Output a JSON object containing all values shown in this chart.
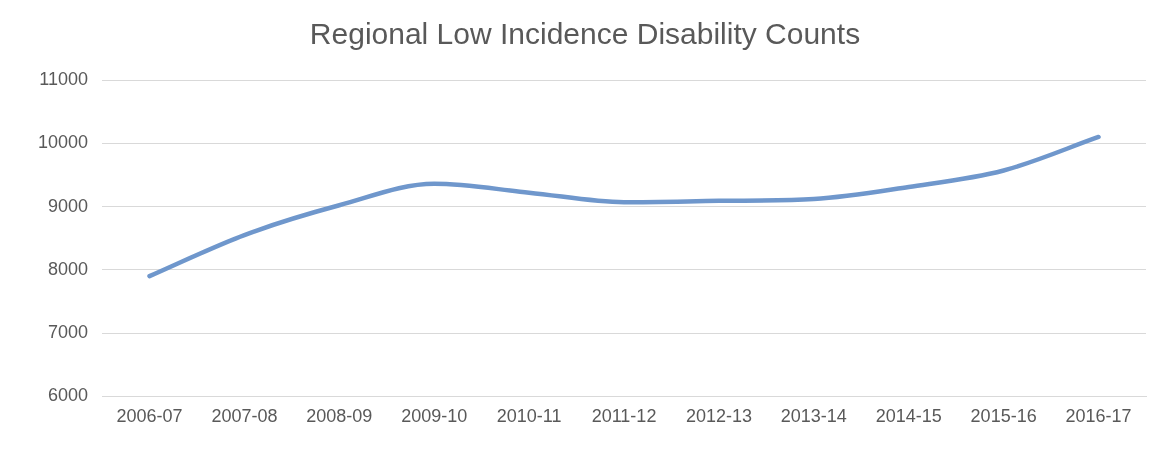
{
  "chart_data": {
    "type": "line",
    "title": "Regional Low Incidence Disability Counts",
    "categories": [
      "2006-07",
      "2007-08",
      "2008-09",
      "2009-10",
      "2010-11",
      "2011-12",
      "2012-13",
      "2013-14",
      "2014-15",
      "2015-16",
      "2016-17"
    ],
    "series": [
      {
        "color": "#6f97cc",
        "values": [
          7900,
          8550,
          9020,
          9360,
          9220,
          9070,
          9090,
          9120,
          9310,
          9570,
          10100
        ]
      }
    ],
    "ylim": [
      6000,
      11000
    ],
    "yticks": [
      6000,
      7000,
      8000,
      9000,
      10000,
      11000
    ],
    "grid": "y",
    "legend": false,
    "marker": "none",
    "line_style": "solid"
  }
}
